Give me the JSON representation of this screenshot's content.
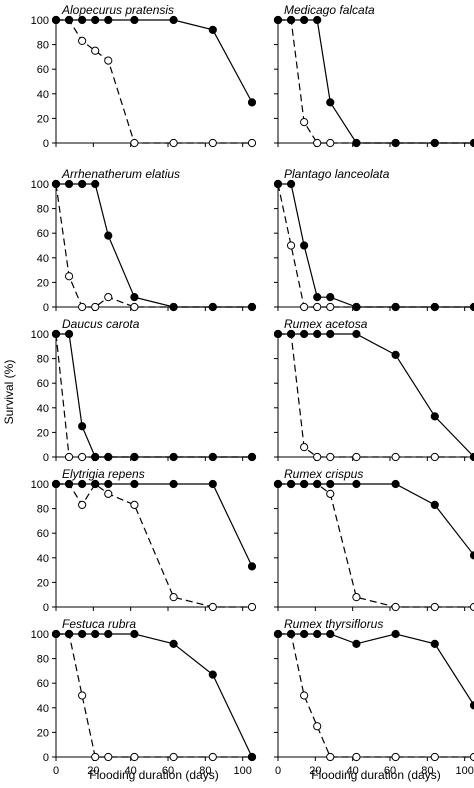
{
  "chart_data": {
    "type": "line",
    "ylabel": "Survival (%)",
    "xlabel": "Flooding duration (days)",
    "xlim": [
      0,
      105
    ],
    "ylim": [
      0,
      100
    ],
    "x_ticks": [
      0,
      20,
      40,
      60,
      80,
      100
    ],
    "x_tick_labels": [
      "0",
      "20",
      "40",
      "60",
      "80",
      "100"
    ],
    "y_ticks": [
      0,
      20,
      40,
      60,
      80,
      100
    ],
    "y_tick_labels": [
      "0",
      "20",
      "40",
      "60",
      "80",
      "100"
    ],
    "grid": false,
    "legend": "none",
    "series_styles": {
      "filled": {
        "marker": "filled-circle",
        "line": "solid",
        "color": "#000000"
      },
      "open": {
        "marker": "open-circle",
        "line": "dashed",
        "color": "#000000"
      }
    },
    "panels": [
      {
        "title": "Alopecurus pratensis",
        "col": 0,
        "row": 0,
        "filled": {
          "x": [
            0,
            7,
            14,
            21,
            28,
            42,
            63,
            84,
            105
          ],
          "y": [
            100,
            100,
            100,
            100,
            100,
            100,
            100,
            92,
            33
          ]
        },
        "open": {
          "x": [
            0,
            7,
            14,
            21,
            28,
            42,
            63,
            84,
            105
          ],
          "y": [
            100,
            100,
            83,
            75,
            67,
            0,
            0,
            0,
            0
          ]
        }
      },
      {
        "title": "Medicago falcata",
        "col": 1,
        "row": 0,
        "filled": {
          "x": [
            0,
            7,
            14,
            21,
            28,
            42,
            63,
            84,
            105
          ],
          "y": [
            100,
            100,
            100,
            100,
            33,
            0,
            0,
            0,
            0
          ]
        },
        "open": {
          "x": [
            0,
            7,
            14,
            21,
            28,
            42,
            63,
            84,
            105
          ],
          "y": [
            100,
            100,
            17,
            0,
            0,
            0,
            0,
            0,
            0
          ]
        }
      },
      {
        "title": "Arrhenatherum elatius",
        "col": 0,
        "row": 1,
        "filled": {
          "x": [
            0,
            7,
            14,
            21,
            28,
            42,
            63,
            84,
            105
          ],
          "y": [
            100,
            100,
            100,
            100,
            58,
            8,
            0,
            0,
            0
          ]
        },
        "open": {
          "x": [
            0,
            7,
            14,
            21,
            28,
            42,
            63,
            84,
            105
          ],
          "y": [
            100,
            25,
            0,
            0,
            8,
            0,
            0,
            0,
            0
          ]
        }
      },
      {
        "title": "Plantago lanceolata",
        "col": 1,
        "row": 1,
        "filled": {
          "x": [
            0,
            7,
            14,
            21,
            28,
            42,
            63,
            84,
            105
          ],
          "y": [
            100,
            100,
            50,
            8,
            8,
            0,
            0,
            0,
            0
          ]
        },
        "open": {
          "x": [
            0,
            7,
            14,
            21,
            28,
            42,
            63,
            84,
            105
          ],
          "y": [
            100,
            50,
            0,
            0,
            0,
            0,
            0,
            0,
            0
          ]
        }
      },
      {
        "title": "Daucus carota",
        "col": 0,
        "row": 2,
        "filled": {
          "x": [
            0,
            7,
            14,
            21,
            28,
            42,
            63,
            84,
            105
          ],
          "y": [
            100,
            100,
            25,
            0,
            0,
            0,
            0,
            0,
            0
          ]
        },
        "open": {
          "x": [
            0,
            7,
            14,
            21,
            28,
            42,
            63,
            84,
            105
          ],
          "y": [
            100,
            0,
            0,
            0,
            0,
            0,
            0,
            0,
            0
          ]
        }
      },
      {
        "title": "Rumex acetosa",
        "col": 1,
        "row": 2,
        "filled": {
          "x": [
            0,
            7,
            14,
            21,
            28,
            42,
            63,
            84,
            105
          ],
          "y": [
            100,
            100,
            100,
            100,
            100,
            100,
            83,
            33,
            0
          ]
        },
        "open": {
          "x": [
            0,
            7,
            14,
            21,
            28,
            42,
            63,
            84,
            105
          ],
          "y": [
            100,
            100,
            8,
            0,
            0,
            0,
            0,
            0,
            0
          ]
        }
      },
      {
        "title": "Elytrigia repens",
        "col": 0,
        "row": 3,
        "filled": {
          "x": [
            0,
            7,
            14,
            21,
            28,
            42,
            63,
            84,
            105
          ],
          "y": [
            100,
            100,
            100,
            100,
            100,
            100,
            100,
            100,
            33
          ]
        },
        "open": {
          "x": [
            0,
            7,
            14,
            21,
            28,
            42,
            63,
            84,
            105
          ],
          "y": [
            100,
            100,
            83,
            100,
            92,
            83,
            8,
            0,
            0
          ]
        }
      },
      {
        "title": "Rumex crispus",
        "col": 1,
        "row": 3,
        "filled": {
          "x": [
            0,
            7,
            14,
            21,
            28,
            42,
            63,
            84,
            105
          ],
          "y": [
            100,
            100,
            100,
            100,
            100,
            100,
            100,
            83,
            42
          ]
        },
        "open": {
          "x": [
            0,
            7,
            14,
            21,
            28,
            42,
            63,
            84,
            105
          ],
          "y": [
            100,
            100,
            100,
            100,
            92,
            8,
            0,
            0,
            0
          ]
        }
      },
      {
        "title": "Festuca rubra",
        "col": 0,
        "row": 4,
        "filled": {
          "x": [
            0,
            7,
            14,
            21,
            28,
            42,
            63,
            84,
            105
          ],
          "y": [
            100,
            100,
            100,
            100,
            100,
            100,
            92,
            67,
            0
          ]
        },
        "open": {
          "x": [
            0,
            7,
            14,
            21,
            28,
            42,
            63,
            84,
            105
          ],
          "y": [
            100,
            100,
            50,
            0,
            0,
            0,
            0,
            0,
            0
          ]
        }
      },
      {
        "title": "Rumex thyrsiflorus",
        "col": 1,
        "row": 4,
        "filled": {
          "x": [
            0,
            7,
            14,
            21,
            28,
            42,
            63,
            84,
            105
          ],
          "y": [
            100,
            100,
            100,
            100,
            100,
            92,
            100,
            92,
            42
          ]
        },
        "open": {
          "x": [
            0,
            7,
            14,
            21,
            28,
            42,
            63,
            84,
            105
          ],
          "y": [
            100,
            100,
            50,
            25,
            0,
            0,
            0,
            0,
            0
          ]
        }
      }
    ]
  }
}
